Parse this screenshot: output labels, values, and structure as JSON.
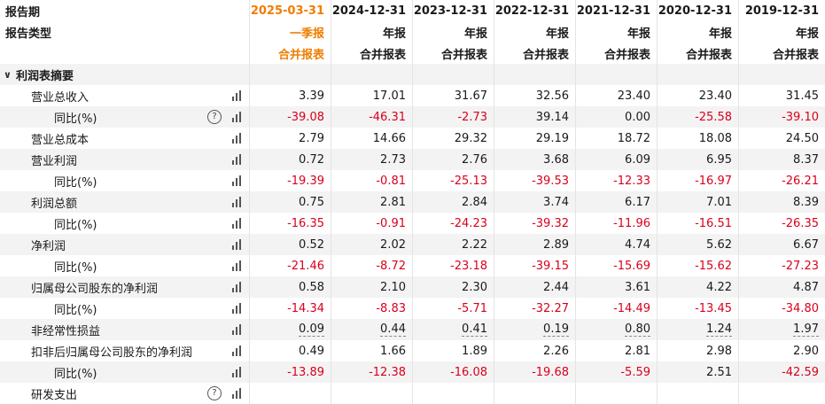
{
  "header": {
    "period_label": "报告期",
    "type_label": "报告类型",
    "periods": [
      "2025-03-31",
      "2024-12-31",
      "2023-12-31",
      "2022-12-31",
      "2021-12-31",
      "2020-12-31",
      "2019-12-31"
    ],
    "report_kinds": [
      "一季报",
      "年报",
      "年报",
      "年报",
      "年报",
      "年报",
      "年报"
    ],
    "statement_types": [
      "合并报表",
      "合并报表",
      "合并报表",
      "合并报表",
      "合并报表",
      "合并报表",
      "合并报表"
    ]
  },
  "section": {
    "title": "利润表摘要",
    "caret": "∨"
  },
  "icons": {
    "help": "?",
    "chart": "bar-chart-icon"
  },
  "colors": {
    "negative": "#d9001b",
    "current_period": "#f07d00"
  },
  "rows": [
    {
      "label": "营业总收入",
      "level": 1,
      "help": false,
      "values": [
        "3.39",
        "17.01",
        "31.67",
        "32.56",
        "23.40",
        "23.40",
        "31.45"
      ]
    },
    {
      "label": "同比(%)",
      "level": 2,
      "help": true,
      "values": [
        "-39.08",
        "-46.31",
        "-2.73",
        "39.14",
        "0.00",
        "-25.58",
        "-39.10"
      ]
    },
    {
      "label": "营业总成本",
      "level": 1,
      "help": false,
      "values": [
        "2.79",
        "14.66",
        "29.32",
        "29.19",
        "18.72",
        "18.08",
        "24.50"
      ]
    },
    {
      "label": "营业利润",
      "level": 1,
      "help": false,
      "values": [
        "0.72",
        "2.73",
        "2.76",
        "3.68",
        "6.09",
        "6.95",
        "8.37"
      ]
    },
    {
      "label": "同比(%)",
      "level": 2,
      "help": false,
      "values": [
        "-19.39",
        "-0.81",
        "-25.13",
        "-39.53",
        "-12.33",
        "-16.97",
        "-26.21"
      ]
    },
    {
      "label": "利润总额",
      "level": 1,
      "help": false,
      "values": [
        "0.75",
        "2.81",
        "2.84",
        "3.74",
        "6.17",
        "7.01",
        "8.39"
      ]
    },
    {
      "label": "同比(%)",
      "level": 2,
      "help": false,
      "values": [
        "-16.35",
        "-0.91",
        "-24.23",
        "-39.32",
        "-11.96",
        "-16.51",
        "-26.35"
      ]
    },
    {
      "label": "净利润",
      "level": 1,
      "help": false,
      "values": [
        "0.52",
        "2.02",
        "2.22",
        "2.89",
        "4.74",
        "5.62",
        "6.67"
      ]
    },
    {
      "label": "同比(%)",
      "level": 2,
      "help": false,
      "values": [
        "-21.46",
        "-8.72",
        "-23.18",
        "-39.15",
        "-15.69",
        "-15.62",
        "-27.23"
      ]
    },
    {
      "label": "归属母公司股东的净利润",
      "level": 1,
      "help": false,
      "values": [
        "0.58",
        "2.10",
        "2.30",
        "2.44",
        "3.61",
        "4.22",
        "4.87"
      ]
    },
    {
      "label": "同比(%)",
      "level": 2,
      "help": false,
      "values": [
        "-14.34",
        "-8.83",
        "-5.71",
        "-32.27",
        "-14.49",
        "-13.45",
        "-34.80"
      ]
    },
    {
      "label": "非经常性损益",
      "level": 1,
      "help": false,
      "underline": true,
      "values": [
        "0.09",
        "0.44",
        "0.41",
        "0.19",
        "0.80",
        "1.24",
        "1.97"
      ]
    },
    {
      "label": "扣非后归属母公司股东的净利润",
      "level": 1,
      "help": false,
      "values": [
        "0.49",
        "1.66",
        "1.89",
        "2.26",
        "2.81",
        "2.98",
        "2.90"
      ]
    },
    {
      "label": "同比(%)",
      "level": 2,
      "help": false,
      "values": [
        "-13.89",
        "-12.38",
        "-16.08",
        "-19.68",
        "-5.59",
        "2.51",
        "-42.59"
      ]
    },
    {
      "label": "研发支出",
      "level": 1,
      "help": true,
      "values": [
        "",
        "",
        "",
        "",
        "",
        "",
        ""
      ]
    }
  ]
}
